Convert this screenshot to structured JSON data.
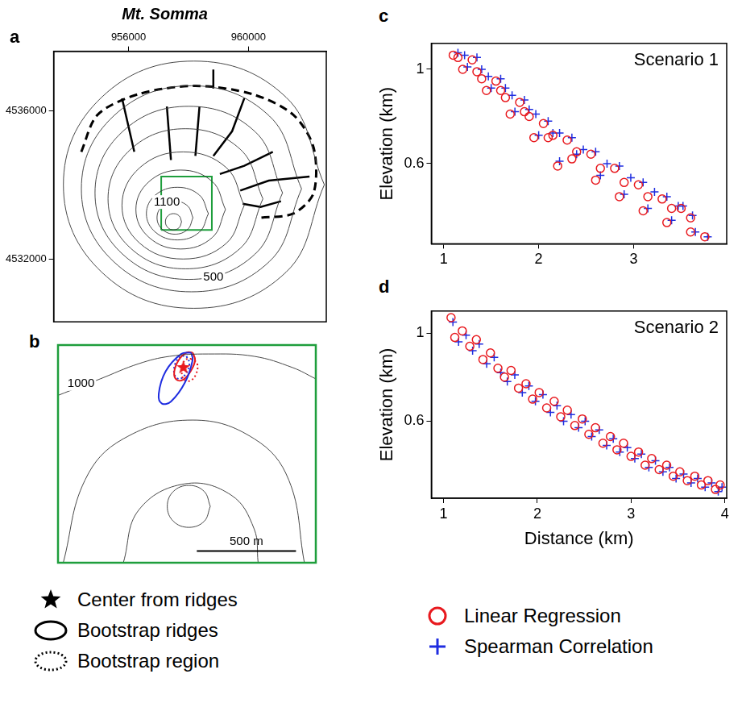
{
  "chart_data": [
    {
      "panel": "a",
      "type": "map",
      "title": "Mt. Somma",
      "xlim": [
        953500,
        962600
      ],
      "ylim": [
        4530300,
        4537600
      ],
      "xticks": [
        956000,
        960000
      ],
      "yticks": [
        4532000,
        4536000
      ],
      "grid": false,
      "contours": [
        {
          "x": [
            957770,
            957691,
            957500,
            957309,
            957230,
            957309,
            957500,
            957691,
            957770
          ],
          "y": [
            4533000,
            4533156,
            4533220,
            4533156,
            4533000,
            4532844,
            4532780,
            4532844,
            4533000
          ]
        },
        {
          "x": [
            958150,
            957974,
            957550,
            957126,
            956950,
            957126,
            957550,
            957974,
            958150
          ],
          "y": [
            4533110,
            4533425,
            4533555,
            4533425,
            4533110,
            4532795,
            4532665,
            4532795,
            4533110
          ]
        },
        {
          "x": [
            958665,
            958362,
            957630,
            956898,
            956595,
            956898,
            957630,
            958362,
            958665
          ],
          "y": [
            4533220,
            4533722,
            4533930,
            4533722,
            4533220,
            4532718,
            4532510,
            4532718,
            4533220
          ]
        },
        {
          "x": [
            959235,
            958797,
            957740,
            956683,
            956245,
            956683,
            957740,
            958797,
            959235
          ],
          "y": [
            4533330,
            4534083,
            4534395,
            4534083,
            4533330,
            4532577,
            4532265,
            4532577,
            4533330
          ]
        },
        {
          "x": [
            959860,
            959262,
            957820,
            956378,
            955780,
            956378,
            957820,
            959262,
            959860
          ],
          "y": [
            4533440,
            4534462,
            4534885,
            4534462,
            4533440,
            4532418,
            4531995,
            4532418,
            4533440
          ]
        },
        {
          "x": [
            960485,
            959728,
            957900,
            956072,
            955315,
            956072,
            957900,
            959728,
            960485
          ],
          "y": [
            4533620,
            4534956,
            4535510,
            4534956,
            4533620,
            4532284,
            4531730,
            4532284,
            4533620
          ]
        },
        {
          "x": [
            961140,
            960223,
            958010,
            955797,
            954880,
            955797,
            958010,
            960223,
            961140
          ],
          "y": [
            4533780,
            4535431,
            4536115,
            4535431,
            4533780,
            4532129,
            4531445,
            4532129,
            4533780
          ]
        },
        {
          "x": [
            961775,
            960698,
            958100,
            955502,
            954425,
            955502,
            958100,
            960698,
            961775
          ],
          "y": [
            4533890,
            4535855,
            4536670,
            4535855,
            4533890,
            4531925,
            4531110,
            4531925,
            4533890
          ]
        },
        {
          "x": [
            962535,
            961259,
            958180,
            955101,
            953825,
            955101,
            958180,
            961259,
            962535
          ],
          "y": [
            4534000,
            4536358,
            4537335,
            4536358,
            4534000,
            4531642,
            4530665,
            4531642,
            4534000
          ]
        }
      ],
      "rim": {
        "line_style": "dashed",
        "x": [
          954422,
          954966,
          956327,
          958231,
          960136,
          961497,
          962177,
          962177,
          961497,
          960408
        ],
        "y": [
          4534887,
          4535887,
          4536442,
          4536665,
          4536442,
          4535887,
          4534998,
          4533776,
          4533220,
          4533109
        ]
      },
      "ridges": [
        {
          "x": [
            955783,
            956191
          ],
          "y": [
            4536331,
            4534887
          ]
        },
        {
          "x": [
            957279,
            957415
          ],
          "y": [
            4536109,
            4534665
          ]
        },
        {
          "x": [
            958367,
            958231
          ],
          "y": [
            4536109,
            4534776
          ]
        },
        {
          "x": [
            959864,
            959456,
            958830
          ],
          "y": [
            4536331,
            4535442,
            4534776
          ]
        },
        {
          "x": [
            958830,
            958830
          ],
          "y": [
            4537109,
            4536598
          ]
        },
        {
          "x": [
            960816,
            959864,
            959048
          ],
          "y": [
            4534887,
            4534509,
            4534287
          ]
        },
        {
          "x": [
            962041,
            960680,
            959728
          ],
          "y": [
            4534220,
            4534109,
            4533842
          ]
        },
        {
          "x": [
            961089,
            960408,
            959810
          ],
          "y": [
            4533554,
            4533398,
            4533487
          ]
        }
      ],
      "inset_box": {
        "x": [
          957090,
          958780
        ],
        "y": [
          4532780,
          4534220
        ]
      },
      "annotations": [
        {
          "text": "1100",
          "x": 957279,
          "y": 4533531
        },
        {
          "text": "500",
          "x": 958830,
          "y": 4531510
        }
      ]
    },
    {
      "panel": "b",
      "type": "map",
      "xlim": [
        956850,
        958150
      ],
      "ylim": [
        4532710,
        4533830
      ],
      "tick_labels": false,
      "grid": false,
      "legend": "bottom",
      "contours": [
        {
          "x": [
            956850,
            957063,
            957257,
            957413,
            957607,
            957839,
            958033,
            958150
          ],
          "y": [
            4533571,
            4533656,
            4533734,
            4533772,
            4533784,
            4533772,
            4533714,
            4533656
          ]
        },
        {
          "x": [
            956877,
            956986,
            957180,
            957529,
            957839,
            958014,
            958092
          ],
          "y": [
            4532712,
            4533135,
            4533348,
            4533444,
            4533348,
            4533135,
            4532712
          ]
        },
        {
          "x": [
            957180,
            957257,
            957490,
            957723,
            957839,
            957859
          ],
          "y": [
            4532712,
            4532981,
            4533116,
            4533058,
            4532884,
            4532712
          ]
        },
        {
          "x": [
            957618,
            957587,
            957510,
            957432,
            957401,
            957432,
            957510,
            957587,
            957618
          ],
          "y": [
            4533000,
            4533077,
            4533108,
            4533077,
            4533000,
            4532923,
            4532892,
            4532923,
            4533000
          ]
        }
      ],
      "annotations": [
        {
          "text": "1000",
          "x": 956966,
          "y": 4533630
        }
      ],
      "scale_bar": {
        "length": 500,
        "label": "500 m",
        "x": 957550,
        "y": 4532770
      },
      "series": [
        {
          "name": "Center from ridges",
          "color": "#e8191e",
          "marker": "star",
          "x": [
            957482
          ],
          "values": [
            4533714
          ]
        },
        {
          "name": "Bootstrap ridges",
          "color": "#1f2de0",
          "line_style": "solid",
          "x": [
            957521,
            957529,
            957490,
            957420,
            957374,
            957358,
            957393,
            957471,
            957521
          ],
          "values": [
            4533791,
            4533753,
            4533637,
            4533540,
            4533529,
            4533579,
            4533695,
            4533784,
            4533791
          ]
        },
        {
          "name": "Bootstrap ridges",
          "color": "#e8191e",
          "line_style": "solid",
          "x": [
            957529,
            957541,
            957521,
            957482,
            957448,
            957436,
            957459,
            957498,
            957529
          ],
          "values": [
            4533791,
            4533753,
            4533699,
            4533652,
            4533652,
            4533691,
            4533753,
            4533791,
            4533791
          ]
        },
        {
          "name": "Bootstrap region",
          "color": "#e8191e",
          "line_style": "dotted",
          "x": [
            957521,
            957552,
            957544,
            957513,
            957482,
            957475,
            957490,
            957521
          ],
          "values": [
            4533760,
            4533734,
            4533676,
            4533645,
            4533656,
            4533706,
            4533753,
            4533760
          ]
        },
        {
          "name": "Bootstrap region",
          "color": "#1f2de0",
          "line_style": "dotted",
          "x": [
            957498,
            957513,
            957490,
            957459,
            957436,
            957444,
            957471,
            957498
          ],
          "values": [
            4533772,
            4533734,
            4533676,
            4533656,
            4533683,
            4533741,
            4533772,
            4533772
          ]
        }
      ]
    },
    {
      "panel": "c",
      "type": "scatter",
      "y_label": "Elevation (km)",
      "annotations": [
        {
          "text": "Scenario 1"
        }
      ],
      "xlim": [
        0.87,
        3.98
      ],
      "ylim": [
        0.26,
        1.11
      ],
      "xticks": [
        1,
        2,
        3
      ],
      "yticks": [
        0.6,
        1
      ],
      "grid": false,
      "series": [
        {
          "name": "Linear Regression",
          "color": "#e8191e",
          "marker": "circle",
          "x": [
            1.1,
            1.35,
            1.6,
            1.85,
            2.1,
            2.35,
            2.6,
            2.85,
            3.1,
            3.35,
            3.6,
            3.75,
            1.15,
            1.4,
            1.65,
            1.9,
            2.15,
            2.4,
            2.65,
            2.9,
            3.15,
            3.4,
            3.6,
            1.2,
            1.45,
            1.7,
            1.95,
            2.2,
            1.3,
            1.55,
            1.8,
            2.05,
            2.3,
            2.55,
            2.8,
            3.05,
            3.3,
            3.5
          ],
          "values": [
            1.06,
            0.99,
            0.91,
            0.82,
            0.71,
            0.62,
            0.53,
            0.46,
            0.4,
            0.35,
            0.31,
            0.29,
            1.05,
            0.96,
            0.88,
            0.8,
            0.72,
            0.65,
            0.58,
            0.52,
            0.46,
            0.41,
            0.37,
            1.0,
            0.91,
            0.81,
            0.71,
            0.59,
            1.04,
            0.95,
            0.86,
            0.77,
            0.7,
            0.64,
            0.58,
            0.51,
            0.45,
            0.41
          ]
        },
        {
          "name": "Spearman Correlation",
          "color": "#1f2de0",
          "marker": "plus",
          "x": [
            1.15,
            1.4,
            1.65,
            1.9,
            2.15,
            2.4,
            2.65,
            2.9,
            3.15,
            3.4,
            3.65,
            3.78,
            1.22,
            1.47,
            1.72,
            1.97,
            2.22,
            2.47,
            2.72,
            2.97,
            3.22,
            3.47,
            3.62,
            1.25,
            1.5,
            1.75,
            2.0,
            2.22,
            1.35,
            1.6,
            1.85,
            2.1,
            2.35,
            2.6,
            2.85,
            3.1,
            3.35,
            3.52
          ],
          "values": [
            1.07,
            1.0,
            0.92,
            0.83,
            0.73,
            0.64,
            0.55,
            0.47,
            0.41,
            0.36,
            0.31,
            0.29,
            1.06,
            0.97,
            0.89,
            0.81,
            0.73,
            0.66,
            0.6,
            0.54,
            0.48,
            0.42,
            0.38,
            1.01,
            0.92,
            0.82,
            0.72,
            0.61,
            1.05,
            0.96,
            0.87,
            0.78,
            0.71,
            0.65,
            0.59,
            0.52,
            0.46,
            0.42
          ]
        }
      ]
    },
    {
      "panel": "d",
      "type": "scatter",
      "y_label": "Elevation (km)",
      "x_label": "Distance (km)",
      "annotations": [
        {
          "text": "Scenario 2"
        }
      ],
      "legend": "bottom",
      "xlim": [
        0.87,
        4.02
      ],
      "ylim": [
        0.25,
        1.1
      ],
      "xticks": [
        1,
        2,
        3,
        4
      ],
      "yticks": [
        0.6,
        1
      ],
      "grid": false,
      "series": [
        {
          "name": "Linear Regression",
          "color": "#e8191e",
          "marker": "circle",
          "x": [
            1.08,
            1.12,
            1.2,
            1.28,
            1.35,
            1.42,
            1.5,
            1.58,
            1.65,
            1.72,
            1.8,
            1.88,
            1.95,
            2.02,
            2.1,
            2.18,
            2.25,
            2.32,
            2.4,
            2.48,
            2.55,
            2.62,
            2.7,
            2.78,
            2.85,
            2.92,
            3.0,
            3.08,
            3.15,
            3.22,
            3.3,
            3.38,
            3.45,
            3.52,
            3.6,
            3.68,
            3.75,
            3.82,
            3.9,
            3.95
          ],
          "values": [
            1.07,
            0.98,
            1.01,
            0.94,
            0.97,
            0.88,
            0.91,
            0.84,
            0.8,
            0.83,
            0.75,
            0.77,
            0.7,
            0.73,
            0.66,
            0.69,
            0.62,
            0.65,
            0.58,
            0.61,
            0.54,
            0.57,
            0.5,
            0.53,
            0.47,
            0.5,
            0.44,
            0.46,
            0.4,
            0.43,
            0.38,
            0.4,
            0.35,
            0.37,
            0.33,
            0.35,
            0.31,
            0.33,
            0.29,
            0.31
          ]
        },
        {
          "name": "Spearman Correlation",
          "color": "#1f2de0",
          "marker": "plus",
          "x": [
            1.1,
            1.16,
            1.24,
            1.31,
            1.38,
            1.46,
            1.54,
            1.61,
            1.68,
            1.76,
            1.84,
            1.91,
            1.98,
            2.06,
            2.14,
            2.21,
            2.28,
            2.36,
            2.44,
            2.51,
            2.58,
            2.66,
            2.74,
            2.81,
            2.88,
            2.96,
            3.04,
            3.11,
            3.19,
            3.26,
            3.34,
            3.41,
            3.48,
            3.56,
            3.64,
            3.71,
            3.79,
            3.86,
            3.93,
            3.97
          ],
          "values": [
            1.05,
            0.96,
            0.99,
            0.92,
            0.95,
            0.86,
            0.89,
            0.82,
            0.78,
            0.81,
            0.73,
            0.76,
            0.69,
            0.72,
            0.64,
            0.67,
            0.6,
            0.63,
            0.57,
            0.6,
            0.53,
            0.56,
            0.49,
            0.52,
            0.46,
            0.48,
            0.43,
            0.45,
            0.39,
            0.42,
            0.37,
            0.39,
            0.34,
            0.36,
            0.32,
            0.34,
            0.3,
            0.32,
            0.28,
            0.3
          ]
        }
      ]
    }
  ]
}
